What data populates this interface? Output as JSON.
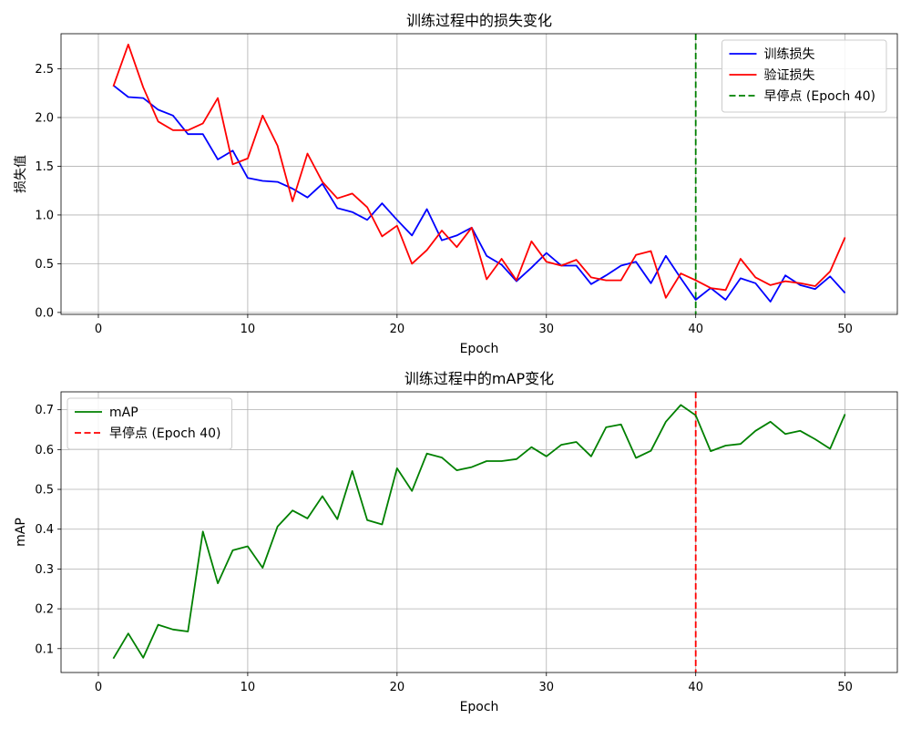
{
  "chart_data": [
    {
      "type": "line",
      "title": "训练过程中的损失变化",
      "xlabel": "Epoch",
      "ylabel": "损失值",
      "xlim": [
        -2.5,
        53.5
      ],
      "ylim": [
        -0.02,
        2.86
      ],
      "xticks": [
        0,
        10,
        20,
        30,
        40,
        50
      ],
      "yticks": [
        0.0,
        0.5,
        1.0,
        1.5,
        2.0,
        2.5
      ],
      "ytick_decimals": 1,
      "grid": true,
      "legend": "top-right",
      "x": [
        1,
        2,
        3,
        4,
        5,
        6,
        7,
        8,
        9,
        10,
        11,
        12,
        13,
        14,
        15,
        16,
        17,
        18,
        19,
        20,
        21,
        22,
        23,
        24,
        25,
        26,
        27,
        28,
        29,
        30,
        31,
        32,
        33,
        34,
        35,
        36,
        37,
        38,
        39,
        40,
        41,
        42,
        43,
        44,
        45,
        46,
        47,
        48,
        49,
        50
      ],
      "series": [
        {
          "name": "训练损失",
          "color": "#0000ff",
          "style": "solid",
          "values": [
            2.33,
            2.21,
            2.2,
            2.08,
            2.02,
            1.83,
            1.83,
            1.57,
            1.66,
            1.38,
            1.35,
            1.34,
            1.27,
            1.18,
            1.32,
            1.07,
            1.03,
            0.95,
            1.12,
            0.95,
            0.79,
            1.06,
            0.74,
            0.79,
            0.87,
            0.58,
            0.49,
            0.32,
            0.46,
            0.61,
            0.48,
            0.48,
            0.29,
            0.38,
            0.48,
            0.52,
            0.3,
            0.58,
            0.35,
            0.13,
            0.25,
            0.13,
            0.35,
            0.3,
            0.11,
            0.38,
            0.28,
            0.24,
            0.37,
            0.2
          ]
        },
        {
          "name": "验证损失",
          "color": "#ff0000",
          "style": "solid",
          "values": [
            2.32,
            2.75,
            2.31,
            1.96,
            1.87,
            1.87,
            1.94,
            2.2,
            1.52,
            1.58,
            2.02,
            1.71,
            1.14,
            1.63,
            1.34,
            1.17,
            1.22,
            1.08,
            0.78,
            0.89,
            0.5,
            0.64,
            0.84,
            0.67,
            0.87,
            0.34,
            0.55,
            0.33,
            0.73,
            0.52,
            0.48,
            0.54,
            0.36,
            0.33,
            0.33,
            0.59,
            0.63,
            0.15,
            0.4,
            0.33,
            0.25,
            0.23,
            0.55,
            0.36,
            0.28,
            0.32,
            0.3,
            0.27,
            0.42,
            0.77
          ]
        }
      ],
      "vline": {
        "x": 40,
        "color": "#008000",
        "style": "dashed",
        "name": "早停点 (Epoch 40)"
      }
    },
    {
      "type": "line",
      "title": "训练过程中的mAP变化",
      "xlabel": "Epoch",
      "ylabel": "mAP",
      "xlim": [
        -2.5,
        53.5
      ],
      "ylim": [
        0.04,
        0.745
      ],
      "xticks": [
        0,
        10,
        20,
        30,
        40,
        50
      ],
      "yticks": [
        0.1,
        0.2,
        0.3,
        0.4,
        0.5,
        0.6,
        0.7
      ],
      "ytick_decimals": 1,
      "grid": true,
      "legend": "top-left",
      "x": [
        1,
        2,
        3,
        4,
        5,
        6,
        7,
        8,
        9,
        10,
        11,
        12,
        13,
        14,
        15,
        16,
        17,
        18,
        19,
        20,
        21,
        22,
        23,
        24,
        25,
        26,
        27,
        28,
        29,
        30,
        31,
        32,
        33,
        34,
        35,
        36,
        37,
        38,
        39,
        40,
        41,
        42,
        43,
        44,
        45,
        46,
        47,
        48,
        49,
        50
      ],
      "series": [
        {
          "name": "mAP",
          "color": "#008000",
          "style": "solid",
          "values": [
            0.075,
            0.138,
            0.077,
            0.16,
            0.148,
            0.143,
            0.394,
            0.264,
            0.347,
            0.357,
            0.303,
            0.407,
            0.447,
            0.427,
            0.483,
            0.425,
            0.546,
            0.423,
            0.412,
            0.553,
            0.496,
            0.59,
            0.58,
            0.548,
            0.556,
            0.571,
            0.571,
            0.576,
            0.606,
            0.583,
            0.612,
            0.619,
            0.583,
            0.656,
            0.663,
            0.579,
            0.597,
            0.67,
            0.712,
            0.686,
            0.596,
            0.61,
            0.614,
            0.647,
            0.67,
            0.639,
            0.647,
            0.626,
            0.602,
            0.689
          ]
        }
      ],
      "vline": {
        "x": 40,
        "color": "#ff0000",
        "style": "dashed",
        "name": "早停点 (Epoch 40)"
      }
    }
  ]
}
